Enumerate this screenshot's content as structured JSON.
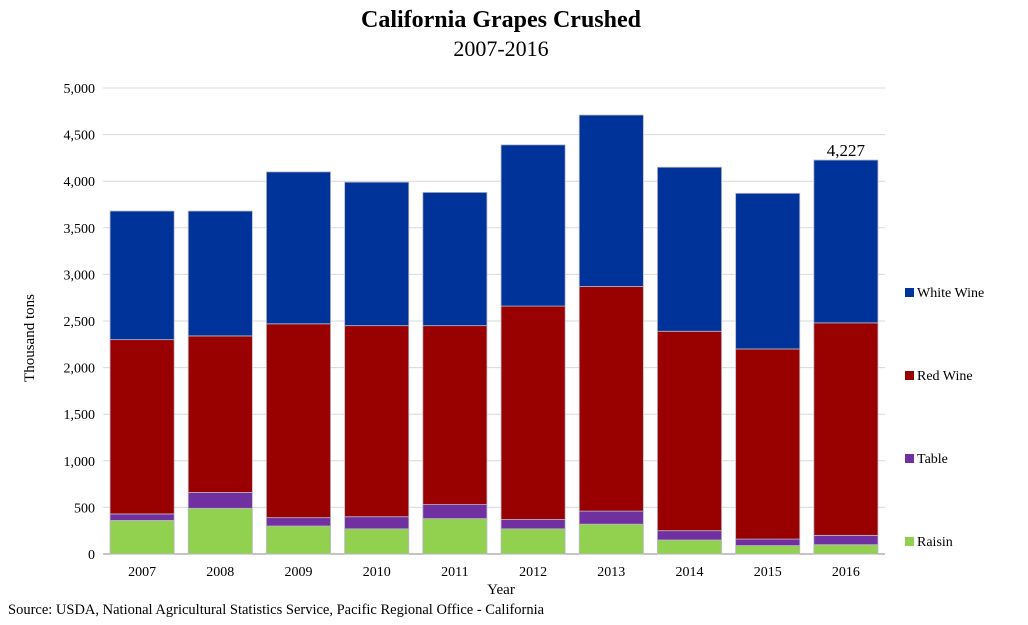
{
  "chart_data": {
    "type": "bar",
    "stacked": true,
    "title": "California Grapes Crushed",
    "subtitle": "2007-2016",
    "xlabel": "Year",
    "ylabel": "Thousand tons",
    "ylim": [
      0,
      5000
    ],
    "yticks": [
      0,
      500,
      1000,
      1500,
      2000,
      2500,
      3000,
      3500,
      4000,
      4500,
      5000
    ],
    "ytick_labels": [
      "0",
      "500",
      "1,000",
      "1,500",
      "2,000",
      "2,500",
      "3,000",
      "3,500",
      "4,000",
      "4,500",
      "5,000"
    ],
    "grid": true,
    "legend_position": "right",
    "categories": [
      "2007",
      "2008",
      "2009",
      "2010",
      "2011",
      "2012",
      "2013",
      "2014",
      "2015",
      "2016"
    ],
    "series": [
      {
        "name": "Raisin",
        "color": "#92d050",
        "values": [
          360,
          490,
          300,
          270,
          380,
          270,
          320,
          150,
          90,
          100
        ]
      },
      {
        "name": "Table",
        "color": "#7030a0",
        "values": [
          70,
          170,
          90,
          130,
          150,
          100,
          140,
          100,
          70,
          100
        ]
      },
      {
        "name": "Red Wine",
        "color": "#990000",
        "values": [
          1870,
          1680,
          2080,
          2050,
          1920,
          2290,
          2410,
          2140,
          2040,
          2280
        ]
      },
      {
        "name": "White Wine",
        "color": "#003399",
        "values": [
          1380,
          1340,
          1630,
          1540,
          1430,
          1730,
          1840,
          1760,
          1670,
          1747
        ]
      }
    ],
    "data_labels": [
      {
        "category": "2016",
        "text": "4,227"
      }
    ],
    "source": "Source: USDA, National Agricultural Statistics Service, Pacific Regional Office - California"
  }
}
